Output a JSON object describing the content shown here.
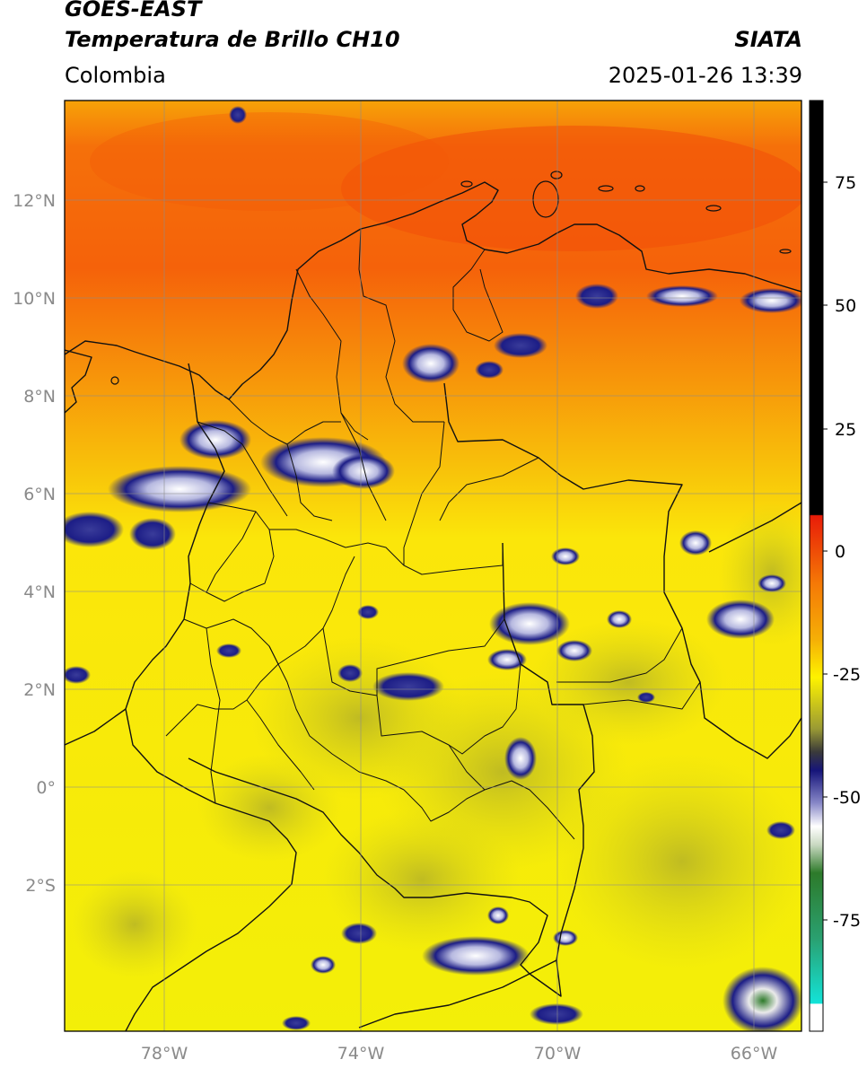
{
  "header": {
    "satellite": "GOES-EAST",
    "product": "Temperatura de Brillo CH10",
    "region": "Colombia",
    "organization": "SIATA",
    "datetime": "2025-01-26 13:39"
  },
  "axes": {
    "lat_labels": [
      "12°N",
      "10°N",
      "8°N",
      "6°N",
      "4°N",
      "2°N",
      "0°",
      "2°S"
    ],
    "lon_labels": [
      "78°W",
      "74°W",
      "70°W",
      "66°W"
    ]
  },
  "colorbar": {
    "ticks": [
      "75",
      "50",
      "25",
      "0",
      "-25",
      "-50",
      "-75"
    ],
    "colors": {
      "black": "#000000",
      "red": "#e81c08",
      "orange": "#f59a06",
      "yellow": "#fef300",
      "olive": "#9a9a34",
      "navy": "#16157a",
      "white": "#ffffff",
      "green": "#2d7a2a",
      "cyan": "#13e3d8"
    }
  },
  "colors": {
    "sea_orange_north": "#f5600a",
    "sea_orange": "#f7a208",
    "land_yellow": "#f2ee08",
    "amazon_olive": "#c8c41e",
    "cloud_navy": "#1c1d86",
    "cloud_white": "#f2f2f2",
    "border": "#111111",
    "grid": "#8c8c8c"
  }
}
